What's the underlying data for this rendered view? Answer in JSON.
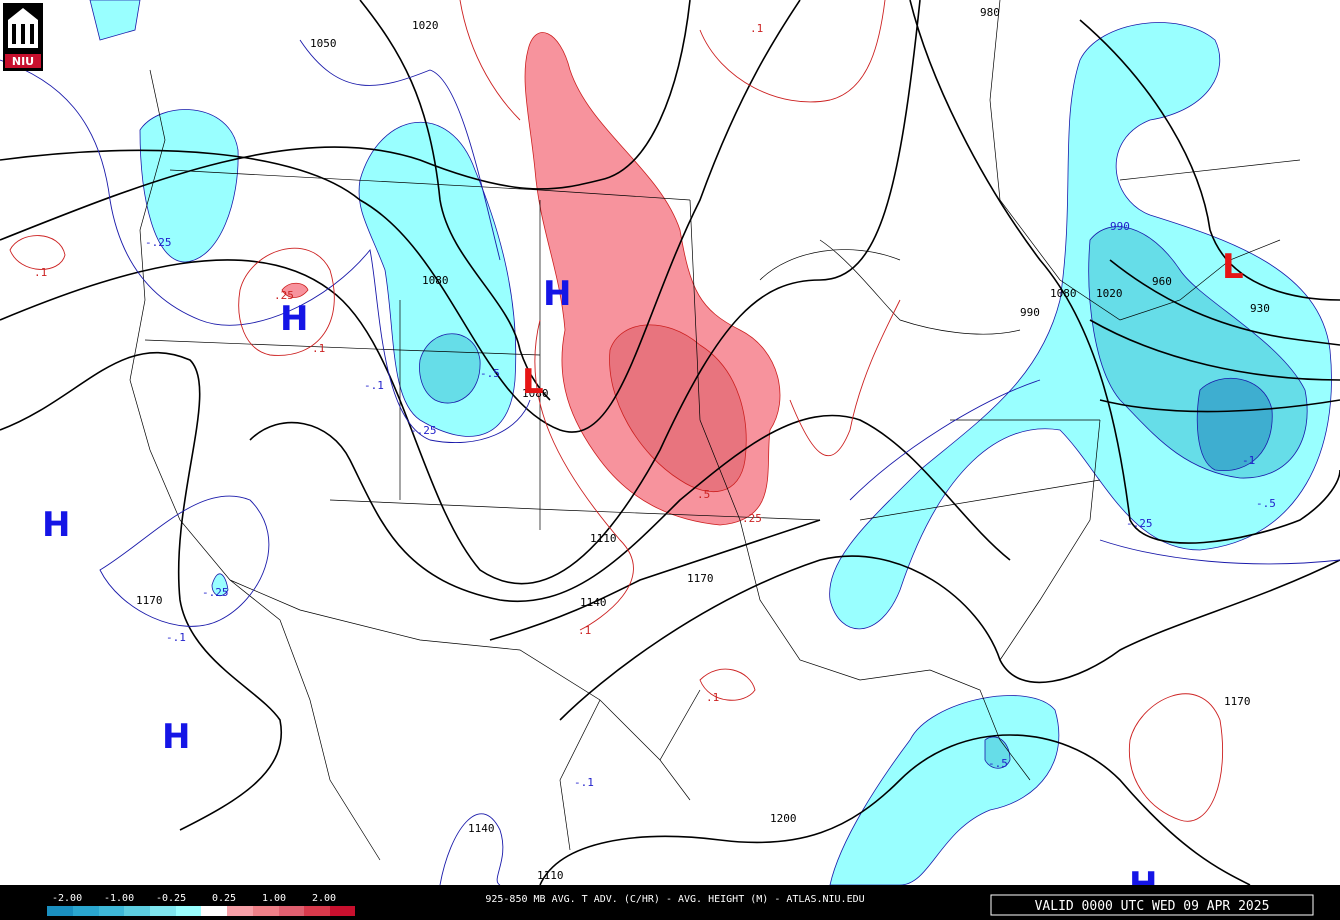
{
  "logo": "NIU",
  "legend": {
    "ticks": [
      "-2.00",
      "-1.00",
      "-0.25",
      "0.25",
      "1.00",
      "2.00"
    ]
  },
  "title": "925-850 MB AVG. T ADV. (C/HR) - AVG. HEIGHT (M) - ATLAS.NIU.EDU",
  "valid": "VALID 0000 UTC WED 09 APR 2025",
  "pressure_centers": [
    "H",
    "L",
    "H",
    "H",
    "H",
    "L",
    "H"
  ],
  "contour_labels": [
    "1050",
    "1020",
    ".1",
    "980",
    ".1",
    "-.25",
    ".25",
    ".1",
    "1080",
    "-.5",
    "1080",
    "-.1",
    "-.25",
    ".5",
    ".25",
    "1110",
    "1140",
    ".1",
    "1170",
    "1170",
    "-.25",
    "-.1",
    ".1",
    "-.1",
    "1140",
    "1110",
    "1200",
    "-.5",
    "1170",
    "-.25",
    "-.5",
    "-1",
    "930",
    "990",
    "1020",
    "960",
    "1080",
    "990"
  ]
}
